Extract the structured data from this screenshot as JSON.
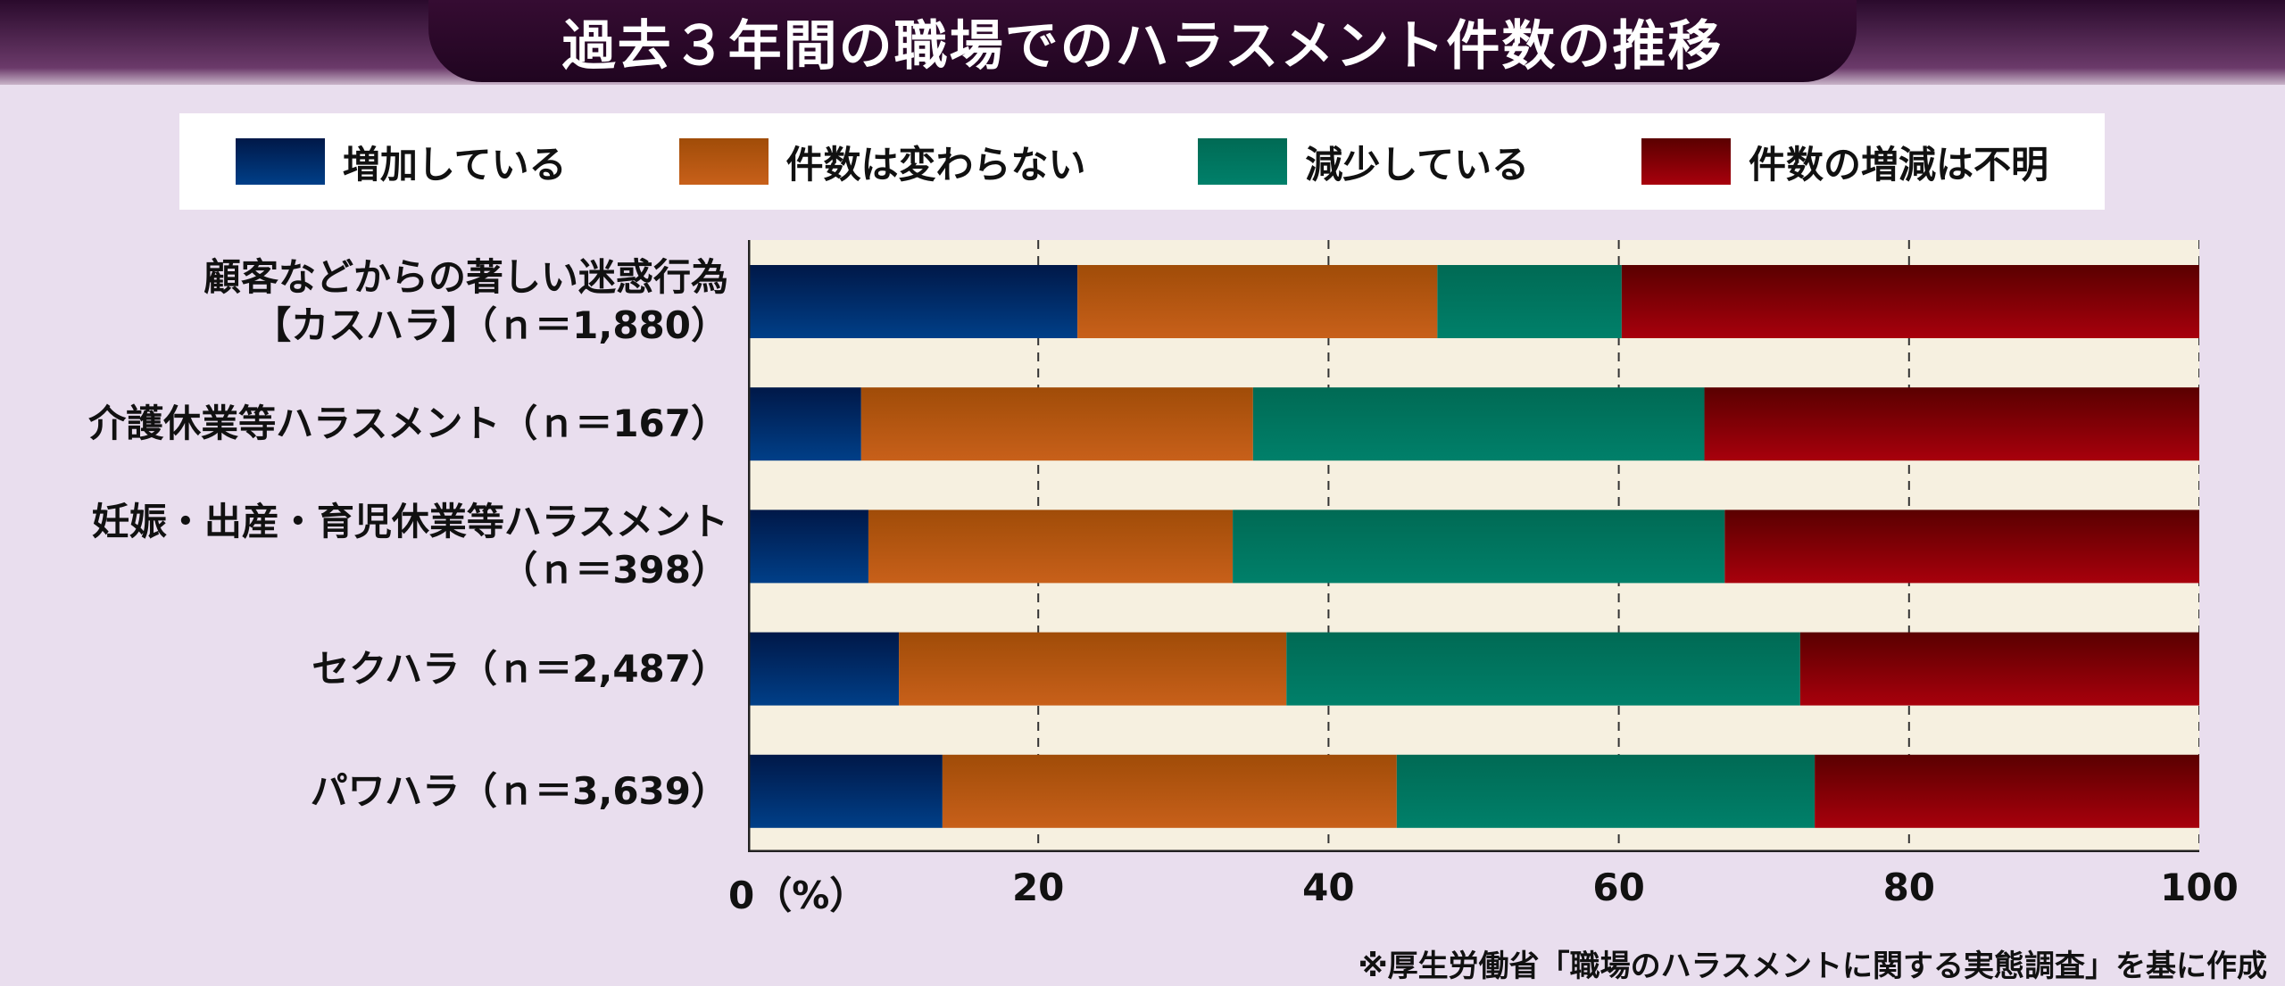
{
  "title": "過去３年間の職場でのハラスメント件数の推移",
  "footer": "※厚生労働省「職場のハラスメントに関する実態調査」を基に作成",
  "chart_data": {
    "type": "bar",
    "orientation": "horizontal",
    "stacked": true,
    "title": "過去３年間の職場でのハラスメント件数の推移",
    "xlim": [
      0,
      100
    ],
    "unit": "%",
    "xticks": [
      "0（%）",
      "20",
      "40",
      "60",
      "80",
      "100"
    ],
    "grid": "vertical dashed",
    "legend": "top",
    "categories": [
      [
        "顧客などからの著しい迷惑行為",
        "【カスハラ】（ｎ＝1,880）"
      ],
      [
        "介護休業等ハラスメント（ｎ＝167）"
      ],
      [
        "妊娠・出産・育児休業等ハラスメント",
        "（ｎ＝398）"
      ],
      [
        "セクハラ（ｎ＝2,487）"
      ],
      [
        "パワハラ（ｎ＝3,639）"
      ]
    ],
    "series": [
      {
        "name": "増加している",
        "color": "#003f88",
        "values": [
          22.7,
          7.8,
          8.3,
          10.4,
          13.4
        ]
      },
      {
        "name": "件数は変わらない",
        "color": "#c8601a",
        "values": [
          24.8,
          27.0,
          25.1,
          26.7,
          31.3
        ]
      },
      {
        "name": "減少している",
        "color": "#00806a",
        "values": [
          12.7,
          31.1,
          33.9,
          35.4,
          28.8
        ]
      },
      {
        "name": "件数の増減は不明",
        "color": "#a8000c",
        "values": [
          39.8,
          34.1,
          32.7,
          27.5,
          26.5
        ]
      }
    ]
  }
}
